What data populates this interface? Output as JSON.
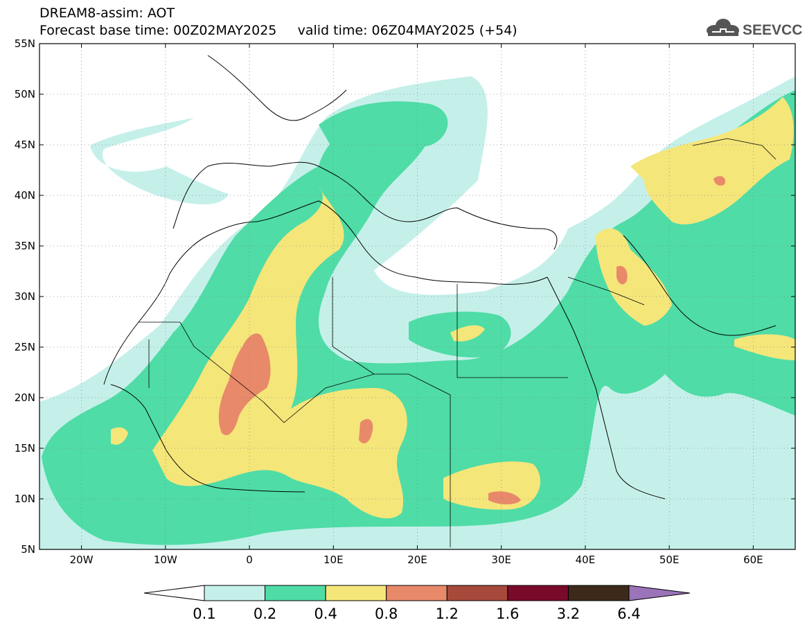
{
  "header": {
    "title_line1": "DREAM8-assim: AOT",
    "base_time": "Forecast base time: 00Z02MAY2025",
    "valid_time": "valid time: 06Z04MAY2025 (+54)"
  },
  "logo": {
    "text": "SEEVCCC",
    "icon": "cloud-icon"
  },
  "map": {
    "lon_range": [
      -25,
      65
    ],
    "lat_range": [
      5,
      55
    ],
    "x_ticks": [
      {
        "lon": -20,
        "label": "20W"
      },
      {
        "lon": -10,
        "label": "10W"
      },
      {
        "lon": 0,
        "label": "0"
      },
      {
        "lon": 10,
        "label": "10E"
      },
      {
        "lon": 20,
        "label": "20E"
      },
      {
        "lon": 30,
        "label": "30E"
      },
      {
        "lon": 40,
        "label": "40E"
      },
      {
        "lon": 50,
        "label": "50E"
      },
      {
        "lon": 60,
        "label": "60E"
      }
    ],
    "y_ticks": [
      {
        "lat": 55,
        "label": "55N"
      },
      {
        "lat": 50,
        "label": "50N"
      },
      {
        "lat": 45,
        "label": "45N"
      },
      {
        "lat": 40,
        "label": "40N"
      },
      {
        "lat": 35,
        "label": "35N"
      },
      {
        "lat": 30,
        "label": "30N"
      },
      {
        "lat": 25,
        "label": "25N"
      },
      {
        "lat": 20,
        "label": "20N"
      },
      {
        "lat": 15,
        "label": "15N"
      },
      {
        "lat": 10,
        "label": "10N"
      },
      {
        "lat": 5,
        "label": "5N"
      }
    ]
  },
  "colorbar": {
    "labels": [
      "0.1",
      "0.2",
      "0.4",
      "0.8",
      "1.2",
      "1.6",
      "3.2",
      "6.4"
    ],
    "colors": [
      "#c5f0ea",
      "#4fdca6",
      "#f5e67a",
      "#e8896a",
      "#a7493b",
      "#7a0a2a",
      "#3d2a1a"
    ],
    "over_color": "#9a73b8",
    "under_color": "#ffffff"
  }
}
